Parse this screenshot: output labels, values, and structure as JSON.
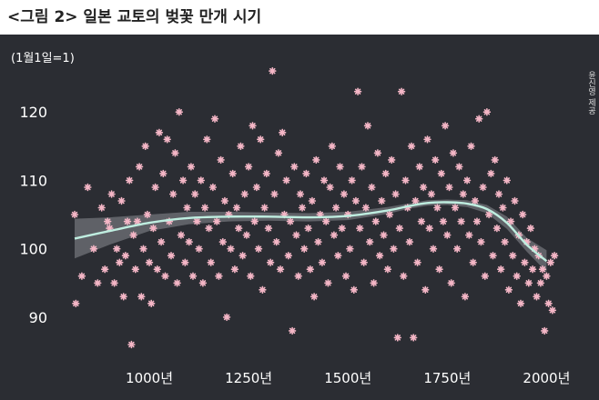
{
  "title": "<그림 2> 일본 교토의 벚꽃 만개 시기",
  "source_label": "윤신영 제공",
  "colors": {
    "panel_bg": "#2b2d33",
    "point": "#f4b6c6",
    "trend": "#bfeee0",
    "band": "#8a8c92",
    "text": "#ffffff"
  },
  "chart_data": {
    "type": "scatter",
    "ylabel": "(1월1일=1)",
    "xlim": [
      812,
      2022
    ],
    "ylim": [
      84,
      130
    ],
    "x_ticks": [
      1000,
      1250,
      1500,
      1750,
      2000
    ],
    "x_tick_labels": [
      "1000년",
      "1250년",
      "1500년",
      "1750년",
      "2000년"
    ],
    "y_ticks": [
      90,
      100,
      110,
      120
    ],
    "y_tick_labels": [
      "90",
      "100",
      "110",
      "120"
    ],
    "trend": {
      "x": [
        812,
        900,
        1000,
        1100,
        1200,
        1300,
        1400,
        1500,
        1600,
        1650,
        1700,
        1750,
        1800,
        1850,
        1900,
        1950,
        2000
      ],
      "y": [
        101.5,
        102.6,
        103.8,
        104.5,
        104.7,
        104.7,
        104.6,
        104.8,
        105.6,
        106.2,
        106.7,
        106.8,
        106.6,
        105.8,
        103.8,
        100.6,
        98.2
      ]
    },
    "band": {
      "x": [
        812,
        900,
        1000,
        1100,
        1200,
        1300,
        1400,
        1500,
        1600,
        1650,
        1700,
        1750,
        1800,
        1850,
        1900,
        1950,
        2000
      ],
      "lower": [
        98.6,
        100.6,
        102.6,
        103.6,
        104.0,
        104.1,
        104.0,
        104.2,
        105.1,
        105.8,
        106.3,
        106.4,
        106.1,
        105.2,
        102.9,
        99.6,
        96.6
      ],
      "upper": [
        104.4,
        104.6,
        105.0,
        105.4,
        105.4,
        105.3,
        105.2,
        105.4,
        106.1,
        106.6,
        107.1,
        107.2,
        107.1,
        106.4,
        104.7,
        101.6,
        99.8
      ]
    },
    "points": [
      [
        812,
        105
      ],
      [
        815,
        92
      ],
      [
        830,
        96
      ],
      [
        845,
        109
      ],
      [
        860,
        100
      ],
      [
        870,
        95
      ],
      [
        880,
        106
      ],
      [
        888,
        97
      ],
      [
        895,
        104
      ],
      [
        900,
        103
      ],
      [
        905,
        108
      ],
      [
        912,
        95
      ],
      [
        918,
        100
      ],
      [
        925,
        98
      ],
      [
        930,
        107
      ],
      [
        935,
        93
      ],
      [
        940,
        99
      ],
      [
        945,
        104
      ],
      [
        950,
        110
      ],
      [
        955,
        86
      ],
      [
        960,
        102
      ],
      [
        965,
        97
      ],
      [
        970,
        104
      ],
      [
        975,
        112
      ],
      [
        980,
        93
      ],
      [
        985,
        100
      ],
      [
        990,
        115
      ],
      [
        995,
        105
      ],
      [
        1000,
        98
      ],
      [
        1005,
        92
      ],
      [
        1010,
        103
      ],
      [
        1015,
        109
      ],
      [
        1020,
        97
      ],
      [
        1025,
        117
      ],
      [
        1030,
        101
      ],
      [
        1035,
        111
      ],
      [
        1040,
        96
      ],
      [
        1045,
        116
      ],
      [
        1050,
        104
      ],
      [
        1055,
        99
      ],
      [
        1060,
        108
      ],
      [
        1065,
        114
      ],
      [
        1070,
        95
      ],
      [
        1075,
        120
      ],
      [
        1080,
        102
      ],
      [
        1085,
        110
      ],
      [
        1090,
        98
      ],
      [
        1095,
        106
      ],
      [
        1100,
        101
      ],
      [
        1105,
        112
      ],
      [
        1110,
        96
      ],
      [
        1115,
        108
      ],
      [
        1120,
        104
      ],
      [
        1125,
        100
      ],
      [
        1130,
        110
      ],
      [
        1135,
        95
      ],
      [
        1140,
        106
      ],
      [
        1145,
        116
      ],
      [
        1150,
        103
      ],
      [
        1155,
        98
      ],
      [
        1160,
        109
      ],
      [
        1165,
        119
      ],
      [
        1170,
        104
      ],
      [
        1175,
        96
      ],
      [
        1180,
        113
      ],
      [
        1185,
        101
      ],
      [
        1190,
        107
      ],
      [
        1195,
        90
      ],
      [
        1200,
        105
      ],
      [
        1205,
        100
      ],
      [
        1210,
        111
      ],
      [
        1215,
        97
      ],
      [
        1220,
        106
      ],
      [
        1225,
        103
      ],
      [
        1230,
        115
      ],
      [
        1235,
        99
      ],
      [
        1240,
        108
      ],
      [
        1245,
        102
      ],
      [
        1250,
        112
      ],
      [
        1255,
        96
      ],
      [
        1260,
        118
      ],
      [
        1265,
        104
      ],
      [
        1270,
        109
      ],
      [
        1275,
        100
      ],
      [
        1280,
        116
      ],
      [
        1285,
        94
      ],
      [
        1290,
        106
      ],
      [
        1295,
        111
      ],
      [
        1300,
        103
      ],
      [
        1305,
        98
      ],
      [
        1310,
        126
      ],
      [
        1315,
        108
      ],
      [
        1320,
        101
      ],
      [
        1325,
        114
      ],
      [
        1330,
        97
      ],
      [
        1335,
        117
      ],
      [
        1340,
        105
      ],
      [
        1345,
        110
      ],
      [
        1350,
        99
      ],
      [
        1355,
        104
      ],
      [
        1360,
        88
      ],
      [
        1365,
        112
      ],
      [
        1370,
        102
      ],
      [
        1375,
        96
      ],
      [
        1380,
        108
      ],
      [
        1385,
        106
      ],
      [
        1390,
        100
      ],
      [
        1395,
        111
      ],
      [
        1400,
        103
      ],
      [
        1405,
        97
      ],
      [
        1410,
        107
      ],
      [
        1415,
        93
      ],
      [
        1420,
        113
      ],
      [
        1425,
        101
      ],
      [
        1430,
        105
      ],
      [
        1435,
        98
      ],
      [
        1440,
        110
      ],
      [
        1445,
        104
      ],
      [
        1450,
        95
      ],
      [
        1455,
        109
      ],
      [
        1460,
        115
      ],
      [
        1465,
        102
      ],
      [
        1470,
        106
      ],
      [
        1475,
        99
      ],
      [
        1480,
        112
      ],
      [
        1485,
        103
      ],
      [
        1490,
        108
      ],
      [
        1495,
        96
      ],
      [
        1500,
        105
      ],
      [
        1505,
        100
      ],
      [
        1510,
        110
      ],
      [
        1515,
        94
      ],
      [
        1520,
        107
      ],
      [
        1525,
        123
      ],
      [
        1530,
        103
      ],
      [
        1535,
        112
      ],
      [
        1540,
        98
      ],
      [
        1545,
        106
      ],
      [
        1550,
        118
      ],
      [
        1555,
        101
      ],
      [
        1560,
        109
      ],
      [
        1565,
        95
      ],
      [
        1570,
        104
      ],
      [
        1575,
        114
      ],
      [
        1580,
        99
      ],
      [
        1585,
        107
      ],
      [
        1590,
        102
      ],
      [
        1595,
        111
      ],
      [
        1600,
        97
      ],
      [
        1605,
        105
      ],
      [
        1610,
        113
      ],
      [
        1615,
        100
      ],
      [
        1620,
        108
      ],
      [
        1625,
        87
      ],
      [
        1630,
        103
      ],
      [
        1635,
        123
      ],
      [
        1640,
        96
      ],
      [
        1645,
        110
      ],
      [
        1650,
        106
      ],
      [
        1655,
        101
      ],
      [
        1660,
        115
      ],
      [
        1665,
        87
      ],
      [
        1670,
        107
      ],
      [
        1675,
        98
      ],
      [
        1680,
        112
      ],
      [
        1685,
        104
      ],
      [
        1690,
        109
      ],
      [
        1695,
        94
      ],
      [
        1700,
        116
      ],
      [
        1705,
        103
      ],
      [
        1710,
        108
      ],
      [
        1715,
        100
      ],
      [
        1720,
        113
      ],
      [
        1725,
        106
      ],
      [
        1730,
        97
      ],
      [
        1735,
        111
      ],
      [
        1740,
        104
      ],
      [
        1745,
        118
      ],
      [
        1750,
        102
      ],
      [
        1755,
        109
      ],
      [
        1760,
        95
      ],
      [
        1765,
        114
      ],
      [
        1770,
        106
      ],
      [
        1775,
        100
      ],
      [
        1780,
        112
      ],
      [
        1785,
        104
      ],
      [
        1790,
        108
      ],
      [
        1795,
        93
      ],
      [
        1800,
        110
      ],
      [
        1805,
        102
      ],
      [
        1810,
        115
      ],
      [
        1815,
        98
      ],
      [
        1820,
        107
      ],
      [
        1825,
        104
      ],
      [
        1830,
        119
      ],
      [
        1835,
        101
      ],
      [
        1840,
        109
      ],
      [
        1845,
        96
      ],
      [
        1850,
        120
      ],
      [
        1855,
        105
      ],
      [
        1860,
        111
      ],
      [
        1865,
        99
      ],
      [
        1870,
        113
      ],
      [
        1875,
        103
      ],
      [
        1880,
        108
      ],
      [
        1885,
        97
      ],
      [
        1890,
        106
      ],
      [
        1895,
        101
      ],
      [
        1900,
        110
      ],
      [
        1905,
        94
      ],
      [
        1910,
        104
      ],
      [
        1915,
        99
      ],
      [
        1920,
        107
      ],
      [
        1925,
        96
      ],
      [
        1930,
        102
      ],
      [
        1935,
        92
      ],
      [
        1940,
        105
      ],
      [
        1945,
        98
      ],
      [
        1950,
        101
      ],
      [
        1955,
        95
      ],
      [
        1960,
        103
      ],
      [
        1965,
        97
      ],
      [
        1970,
        100
      ],
      [
        1975,
        93
      ],
      [
        1980,
        99
      ],
      [
        1985,
        95
      ],
      [
        1990,
        97
      ],
      [
        1995,
        88
      ],
      [
        2000,
        96
      ],
      [
        2005,
        92
      ],
      [
        2010,
        98
      ],
      [
        2015,
        91
      ],
      [
        2020,
        99
      ]
    ]
  }
}
